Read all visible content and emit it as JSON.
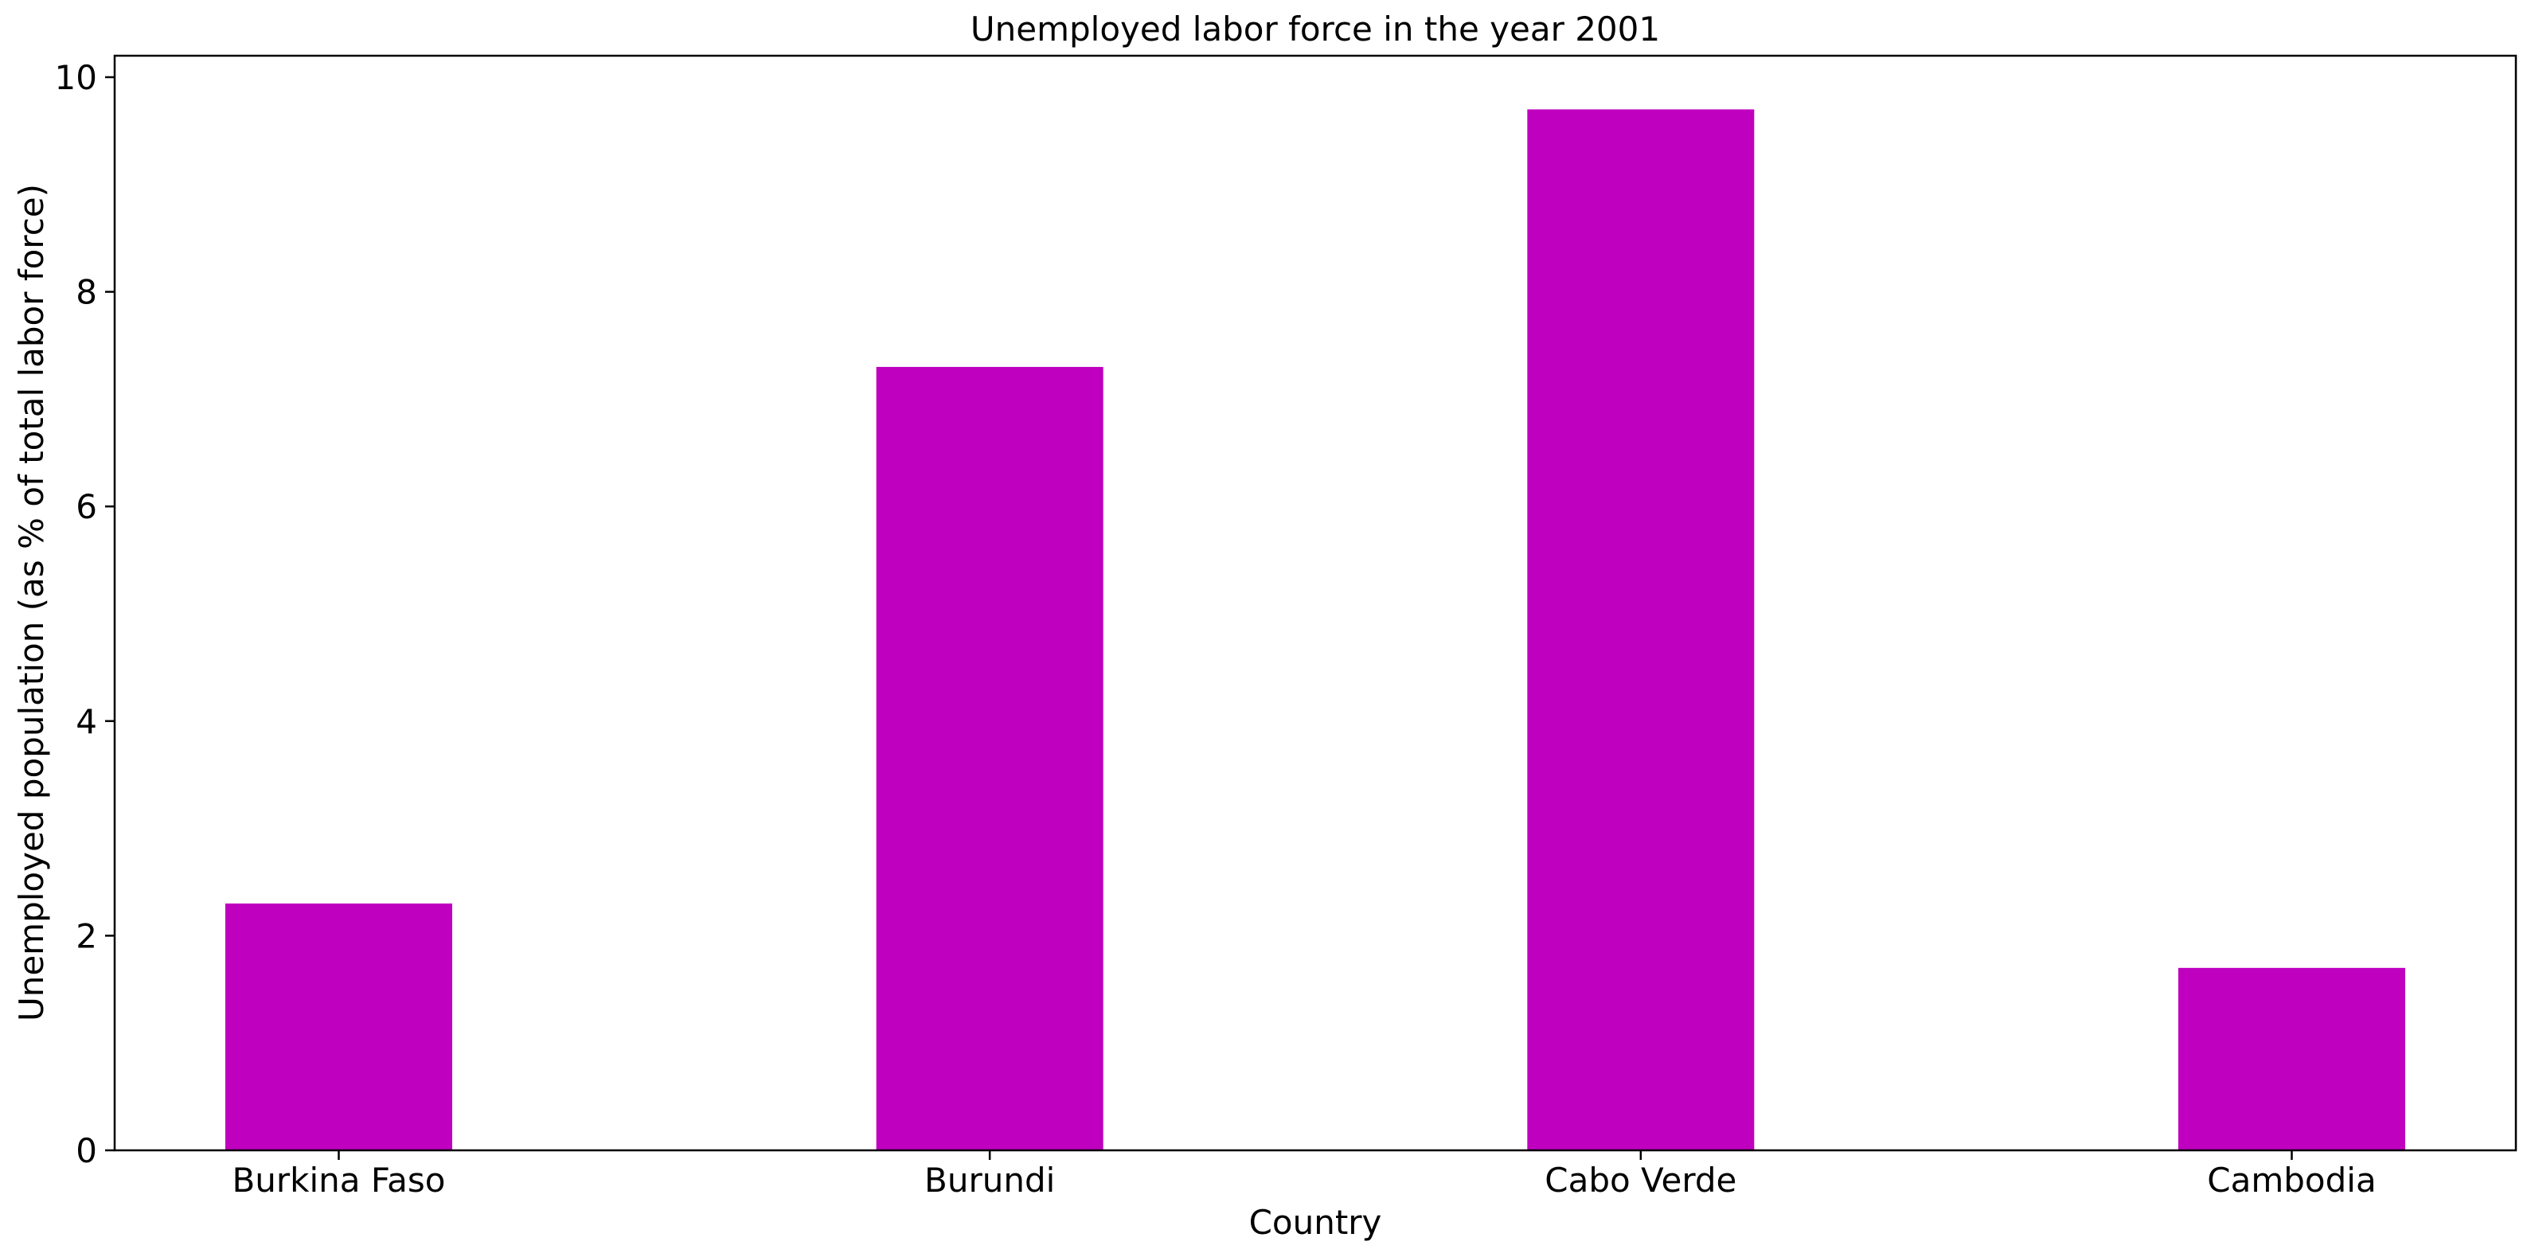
{
  "chart_data": {
    "type": "bar",
    "title": "Unemployed labor force in the year 2001",
    "xlabel": "Country",
    "ylabel": "Unemployed population (as % of total labor force)",
    "categories": [
      "Burkina Faso",
      "Burundi",
      "Cabo Verde",
      "Cambodia"
    ],
    "values": [
      2.3,
      7.3,
      9.7,
      1.7
    ],
    "ylim": [
      0,
      10.2
    ],
    "yticks": [
      0,
      2,
      4,
      6,
      8,
      10
    ],
    "ytick_labels": [
      "0",
      "2",
      "4",
      "6",
      "8",
      "10"
    ],
    "bar_color": "#bf00bf",
    "grid": false,
    "legend": "none"
  }
}
